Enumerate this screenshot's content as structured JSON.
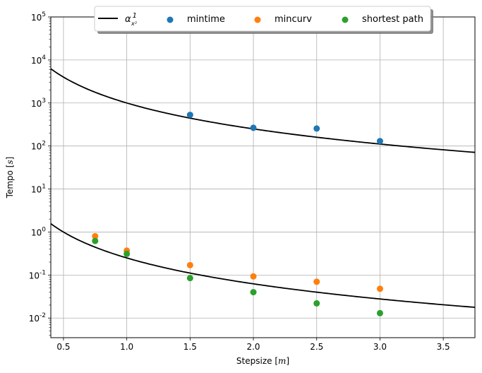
{
  "chart_data": {
    "type": "scatter",
    "xlabel": "Stepsize",
    "xlabel_unit": "m",
    "ylabel": "Tempo",
    "ylabel_unit": "s",
    "xlim": [
      0.4,
      3.75
    ],
    "ylim": [
      0.0035,
      100000
    ],
    "yscale": "log",
    "grid": true,
    "legend_position": "top-center",
    "x_ticks": [
      0.5,
      1.0,
      1.5,
      2.0,
      2.5,
      3.0,
      3.5
    ],
    "x_tick_labels": [
      "0.5",
      "1.0",
      "1.5",
      "2.0",
      "2.5",
      "3.0",
      "3.5"
    ],
    "y_ticks": [
      0.01,
      0.1,
      1,
      10,
      100,
      1000,
      10000,
      100000
    ],
    "y_tick_exponents": [
      "-2",
      "-1",
      "0",
      "1",
      "2",
      "3",
      "4",
      "5"
    ],
    "series": [
      {
        "name": "mintime",
        "kind": "scatter",
        "color": "#1f77b4",
        "x": [
          1.5,
          2.0,
          2.5,
          3.0
        ],
        "y": [
          530,
          265,
          255,
          130
        ]
      },
      {
        "name": "mincurv",
        "kind": "scatter",
        "color": "#ff7f0e",
        "x": [
          0.75,
          1.0,
          1.5,
          2.0,
          2.5,
          3.0
        ],
        "y": [
          0.8,
          0.37,
          0.17,
          0.093,
          0.07,
          0.048
        ]
      },
      {
        "name": "shortest path",
        "kind": "scatter",
        "color": "#2ca02c",
        "x": [
          0.75,
          1.0,
          1.5,
          2.0,
          2.5,
          3.0
        ],
        "y": [
          0.62,
          0.31,
          0.085,
          0.04,
          0.022,
          0.013
        ]
      }
    ],
    "fit_curves": {
      "legend_label": "α 1/x²",
      "color": "#000000",
      "coefficients": [
        1000,
        0.25
      ]
    }
  }
}
